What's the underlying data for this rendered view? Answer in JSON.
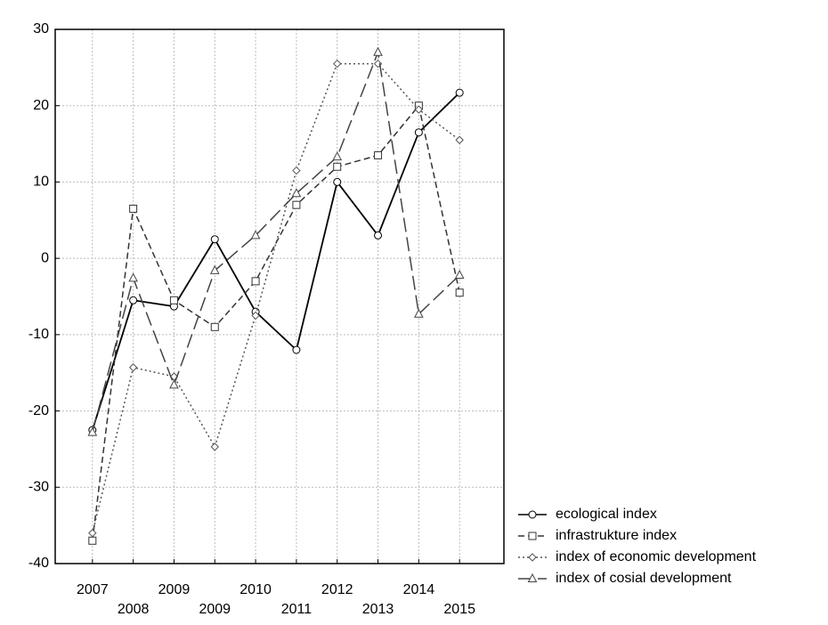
{
  "chart_data": {
    "type": "line",
    "categories": [
      "2007",
      "2008",
      "2009",
      "2009",
      "2010",
      "2011",
      "2012",
      "2013",
      "2014",
      "2015"
    ],
    "series": [
      {
        "name": "ecological index",
        "color": "#000000",
        "dash": "solid",
        "marker": "circle",
        "values": [
          -22.5,
          -5.5,
          -6.3,
          2.5,
          -7,
          -12,
          10,
          3,
          16.5,
          21.7
        ]
      },
      {
        "name": "infrastrukture index",
        "color": "#333333",
        "dash": "dashed",
        "marker": "square",
        "values": [
          -37,
          6.5,
          -5.5,
          -9,
          -3,
          7,
          12,
          13.5,
          20,
          -4.5
        ]
      },
      {
        "name": "index of economic development",
        "color": "#555555",
        "dash": "dotted",
        "marker": "diamond",
        "values": [
          -36,
          -14.3,
          -15.5,
          -24.7,
          -7.5,
          11.5,
          25.5,
          25.5,
          19.5,
          15.5
        ]
      },
      {
        "name": "index of cosial development",
        "color": "#444444",
        "dash": "longdash",
        "marker": "triangle",
        "values": [
          -22.8,
          -2.6,
          -16.6,
          -1.6,
          3,
          8.5,
          13.3,
          27,
          -7.3,
          -2.2
        ]
      }
    ],
    "ylim": [
      -40,
      30
    ],
    "yticks": [
      -40,
      -30,
      -20,
      -10,
      0,
      10,
      20,
      30
    ],
    "grid": true,
    "legend": "lower right"
  }
}
